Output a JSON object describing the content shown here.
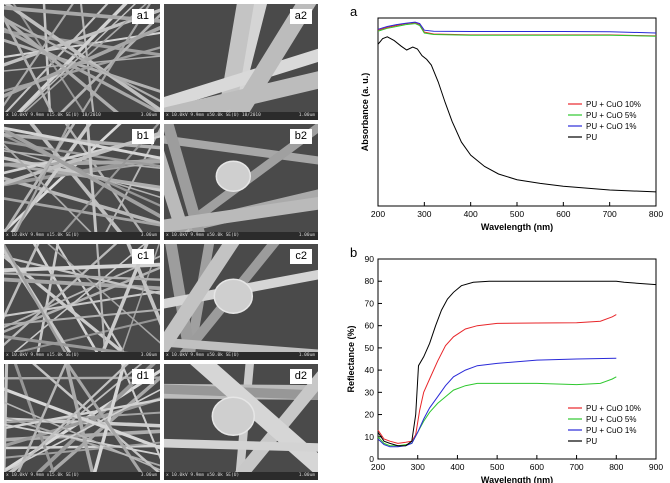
{
  "sem_panels": [
    {
      "label": "a1",
      "info": "x 10.0kV 9.9mm x15.0k SE(U) 10/2010",
      "scale": "3.00um"
    },
    {
      "label": "a2",
      "info": "x 10.0kV 9.9mm x50.0k SE(U) 10/2010",
      "scale": "1.00um"
    },
    {
      "label": "b1",
      "info": "x 10.0kV 9.9mm x15.0k SE(U)",
      "scale": "3.00um"
    },
    {
      "label": "b2",
      "info": "x 10.0kV 9.9mm x50.0k SE(U)",
      "scale": "1.00um"
    },
    {
      "label": "c1",
      "info": "x 10.0kV 9.9mm x15.0k SE(U)",
      "scale": "3.00um"
    },
    {
      "label": "c2",
      "info": "x 10.0kV 9.9mm x50.0k SE(U)",
      "scale": "1.00um"
    },
    {
      "label": "d1",
      "info": "x 10.0kV 9.9mm x15.0k SE(U)",
      "scale": "3.00um"
    },
    {
      "label": "d2",
      "info": "x 10.0kV 9.9mm x50.0k SE(U)",
      "scale": "1.00um"
    }
  ],
  "chart_data": [
    {
      "panel_letter": "a",
      "type": "line",
      "xlabel": "Wavelength (nm)",
      "ylabel": "Absorbance (a. u.)",
      "xlim": [
        200,
        800
      ],
      "xticks": [
        200,
        300,
        400,
        500,
        600,
        700,
        800
      ],
      "ylim": [
        0,
        1
      ],
      "yticks_shown": false,
      "legend_position": "right",
      "series": [
        {
          "name": "PU + CuO 10%",
          "color": "#e8262a",
          "points": [
            [
              200,
              0.935
            ],
            [
              220,
              0.95
            ],
            [
              240,
              0.96
            ],
            [
              260,
              0.97
            ],
            [
              280,
              0.975
            ],
            [
              290,
              0.965
            ],
            [
              300,
              0.925
            ],
            [
              320,
              0.915
            ],
            [
              400,
              0.91
            ],
            [
              500,
              0.91
            ],
            [
              600,
              0.91
            ],
            [
              700,
              0.91
            ],
            [
              800,
              0.905
            ]
          ]
        },
        {
          "name": "PU + CuO 5%",
          "color": "#2fc82f",
          "points": [
            [
              200,
              0.93
            ],
            [
              220,
              0.945
            ],
            [
              240,
              0.955
            ],
            [
              260,
              0.965
            ],
            [
              280,
              0.97
            ],
            [
              290,
              0.96
            ],
            [
              300,
              0.92
            ],
            [
              320,
              0.912
            ],
            [
              400,
              0.908
            ],
            [
              500,
              0.908
            ],
            [
              600,
              0.908
            ],
            [
              700,
              0.908
            ],
            [
              800,
              0.903
            ]
          ]
        },
        {
          "name": "PU + CuO 1%",
          "color": "#2a2ad8",
          "points": [
            [
              200,
              0.94
            ],
            [
              220,
              0.955
            ],
            [
              240,
              0.965
            ],
            [
              260,
              0.972
            ],
            [
              280,
              0.978
            ],
            [
              290,
              0.97
            ],
            [
              300,
              0.935
            ],
            [
              320,
              0.93
            ],
            [
              400,
              0.928
            ],
            [
              500,
              0.928
            ],
            [
              600,
              0.928
            ],
            [
              700,
              0.927
            ],
            [
              800,
              0.92
            ]
          ]
        },
        {
          "name": "PU",
          "color": "#000000",
          "points": [
            [
              200,
              0.86
            ],
            [
              210,
              0.89
            ],
            [
              220,
              0.9
            ],
            [
              235,
              0.88
            ],
            [
              250,
              0.85
            ],
            [
              262,
              0.83
            ],
            [
              275,
              0.845
            ],
            [
              285,
              0.835
            ],
            [
              295,
              0.8
            ],
            [
              305,
              0.78
            ],
            [
              315,
              0.75
            ],
            [
              330,
              0.66
            ],
            [
              345,
              0.55
            ],
            [
              360,
              0.45
            ],
            [
              380,
              0.34
            ],
            [
              400,
              0.27
            ],
            [
              430,
              0.21
            ],
            [
              460,
              0.17
            ],
            [
              500,
              0.14
            ],
            [
              550,
              0.12
            ],
            [
              600,
              0.105
            ],
            [
              650,
              0.095
            ],
            [
              700,
              0.085
            ],
            [
              800,
              0.075
            ]
          ]
        }
      ]
    },
    {
      "panel_letter": "b",
      "type": "line",
      "xlabel": "Wavelength (nm)",
      "ylabel": "Reflectance (%)",
      "xlim": [
        200,
        900
      ],
      "xticks": [
        200,
        300,
        400,
        500,
        600,
        700,
        800,
        900
      ],
      "ylim": [
        0,
        90
      ],
      "yticks": [
        0,
        10,
        20,
        30,
        40,
        50,
        60,
        70,
        80,
        90
      ],
      "legend_position": "bottom-right",
      "series": [
        {
          "name": "PU + CuO 10%",
          "color": "#e8262a",
          "points": [
            [
              200,
              13
            ],
            [
              215,
              9
            ],
            [
              230,
              8
            ],
            [
              250,
              7
            ],
            [
              270,
              7.5
            ],
            [
              285,
              8
            ],
            [
              295,
              11
            ],
            [
              305,
              22
            ],
            [
              315,
              30
            ],
            [
              330,
              36
            ],
            [
              350,
              44
            ],
            [
              370,
              51
            ],
            [
              390,
              55
            ],
            [
              420,
              58.5
            ],
            [
              450,
              60
            ],
            [
              500,
              61
            ],
            [
              600,
              61.2
            ],
            [
              700,
              61.3
            ],
            [
              760,
              62
            ],
            [
              790,
              64
            ],
            [
              800,
              65
            ]
          ]
        },
        {
          "name": "PU + CuO 5%",
          "color": "#2fc82f",
          "points": [
            [
              200,
              10
            ],
            [
              215,
              7
            ],
            [
              230,
              6
            ],
            [
              250,
              6
            ],
            [
              270,
              6.5
            ],
            [
              285,
              7
            ],
            [
              300,
              12
            ],
            [
              315,
              17
            ],
            [
              330,
              21
            ],
            [
              350,
              25
            ],
            [
              370,
              28
            ],
            [
              390,
              31
            ],
            [
              420,
              33
            ],
            [
              450,
              34
            ],
            [
              500,
              34
            ],
            [
              600,
              34
            ],
            [
              700,
              33.5
            ],
            [
              760,
              34
            ],
            [
              790,
              36
            ],
            [
              800,
              37
            ]
          ]
        },
        {
          "name": "PU + CuO 1%",
          "color": "#2a2ad8",
          "points": [
            [
              200,
              9
            ],
            [
              215,
              6.5
            ],
            [
              230,
              5.5
            ],
            [
              250,
              5.5
            ],
            [
              270,
              6
            ],
            [
              285,
              7
            ],
            [
              300,
              12
            ],
            [
              315,
              18
            ],
            [
              330,
              23
            ],
            [
              350,
              28
            ],
            [
              370,
              33
            ],
            [
              390,
              37
            ],
            [
              420,
              40
            ],
            [
              450,
              42
            ],
            [
              500,
              43
            ],
            [
              600,
              44.5
            ],
            [
              700,
              45
            ],
            [
              800,
              45.3
            ]
          ]
        },
        {
          "name": "PU",
          "color": "#000000",
          "points": [
            [
              200,
              12
            ],
            [
              215,
              8
            ],
            [
              230,
              7
            ],
            [
              250,
              6
            ],
            [
              270,
              6
            ],
            [
              285,
              8
            ],
            [
              295,
              20
            ],
            [
              302,
              42
            ],
            [
              315,
              46
            ],
            [
              330,
              52
            ],
            [
              345,
              60
            ],
            [
              360,
              67
            ],
            [
              375,
              72
            ],
            [
              390,
              75
            ],
            [
              410,
              78
            ],
            [
              440,
              79.5
            ],
            [
              480,
              80
            ],
            [
              550,
              80
            ],
            [
              650,
              80
            ],
            [
              750,
              80
            ],
            [
              800,
              80
            ],
            [
              820,
              79.5
            ],
            [
              900,
              78.5
            ]
          ]
        }
      ]
    }
  ]
}
